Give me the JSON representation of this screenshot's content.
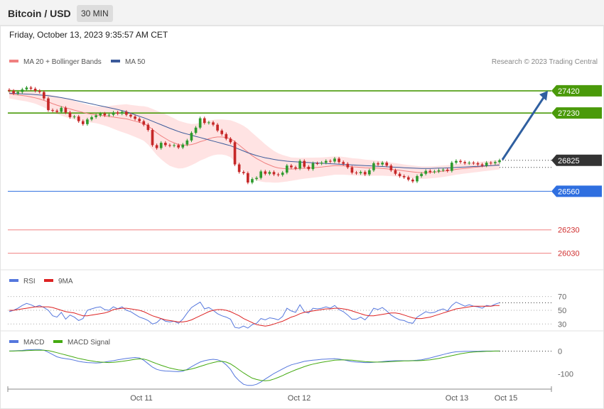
{
  "header": {
    "title": "Bitcoin / USD",
    "interval": "30 MIN",
    "datetime": "Friday, October 13, 2023 9:35:57 AM CET"
  },
  "colors": {
    "ma20": "#f08080",
    "ma50": "#3b5a9a",
    "band_fill": "#ffd9d9",
    "bull": "#2e9a2e",
    "bear": "#c62828",
    "resistance": "#4a9a0a",
    "support": "#2f6fe0",
    "deep_support": "#f08080",
    "price": "#333333",
    "arrow": "#2f5fa0",
    "rsi": "#5577dd",
    "rsi_ma": "#dd2222",
    "macd": "#5577dd",
    "macd_signal": "#44aa11"
  },
  "chart_data": [
    {
      "type": "candlestick",
      "panel": "price",
      "legend": [
        {
          "name": "MA 20 + Bollinger Bands",
          "color": "#f08080"
        },
        {
          "name": "MA 50",
          "color": "#3b5a9a"
        }
      ],
      "credit": "Research © 2023 Trading Central",
      "x_ticks": [
        "Oct 11",
        "Oct 12",
        "Oct 13",
        "Oct 15"
      ],
      "ylim": [
        25900,
        27620
      ],
      "levels": [
        {
          "value": 27420,
          "label": "27420",
          "kind": "resistance",
          "tag": true
        },
        {
          "value": 27230,
          "label": "27230",
          "kind": "resistance",
          "tag": true
        },
        {
          "value": 26825,
          "label": "26825",
          "kind": "price",
          "tag": true
        },
        {
          "value": 26560,
          "label": "26560",
          "kind": "support",
          "tag": true
        },
        {
          "value": 26230,
          "label": "26230",
          "kind": "deep_support",
          "tag": false
        },
        {
          "value": 26030,
          "label": "26030",
          "kind": "deep_support",
          "tag": false
        }
      ],
      "forecast_arrow": {
        "from": 26830,
        "to": 27420
      },
      "close": [
        27420,
        27398,
        27410,
        27432,
        27448,
        27438,
        27420,
        27410,
        27355,
        27255,
        27250,
        27240,
        27275,
        27235,
        27195,
        27200,
        27160,
        27135,
        27175,
        27195,
        27210,
        27225,
        27210,
        27215,
        27235,
        27225,
        27240,
        27215,
        27200,
        27180,
        27160,
        27130,
        27085,
        26955,
        26930,
        26975,
        26955,
        26950,
        26955,
        26935,
        26960,
        26995,
        27060,
        27105,
        27185,
        27145,
        27150,
        27130,
        27080,
        27050,
        27010,
        26980,
        26790,
        26725,
        26715,
        26635,
        26665,
        26675,
        26730,
        26710,
        26725,
        26705,
        26700,
        26720,
        26780,
        26765,
        26755,
        26820,
        26770,
        26750,
        26800,
        26798,
        26805,
        26820,
        26815,
        26840,
        26810,
        26795,
        26765,
        26720,
        26715,
        26725,
        26705,
        26740,
        26800,
        26790,
        26805,
        26780,
        26740,
        26710,
        26690,
        26680,
        26660,
        26645,
        26690,
        26710,
        26735,
        26725,
        26730,
        26740,
        26745,
        26735,
        26805,
        26820,
        26810,
        26800,
        26805,
        26800,
        26790,
        26780,
        26805,
        26800,
        26810,
        26825
      ],
      "ma20": [
        27395,
        27390,
        27385,
        27380,
        27375,
        27368,
        27360,
        27350,
        27338,
        27325,
        27310,
        27297,
        27286,
        27275,
        27265,
        27255,
        27245,
        27235,
        27227,
        27220,
        27215,
        27210,
        27205,
        27200,
        27195,
        27190,
        27185,
        27180,
        27170,
        27160,
        27150,
        27140,
        27120,
        27090,
        27060,
        27035,
        27012,
        26990,
        26975,
        26960,
        26955,
        26955,
        26960,
        26970,
        26985,
        26995,
        27010,
        27020,
        27025,
        27025,
        27020,
        27010,
        26985,
        26955,
        26925,
        26895,
        26865,
        26840,
        26820,
        26800,
        26785,
        26770,
        26760,
        26755,
        26752,
        26750,
        26752,
        26755,
        26758,
        26760,
        26762,
        26765,
        26768,
        26772,
        26776,
        26780,
        26780,
        26778,
        26775,
        26770,
        26768,
        26765,
        26762,
        26760,
        26760,
        26758,
        26756,
        26752,
        26748,
        26744,
        26740,
        26735,
        26730,
        26726,
        26722,
        26720,
        26720,
        26722,
        26724,
        26728,
        26732,
        26736,
        26742,
        26748,
        26752,
        26756,
        26760,
        26764,
        26768,
        26772,
        26776,
        26780,
        26784,
        26788
      ],
      "ma50": [
        27400,
        27398,
        27396,
        27394,
        27392,
        27390,
        27388,
        27385,
        27382,
        27378,
        27373,
        27368,
        27362,
        27355,
        27348,
        27340,
        27332,
        27324,
        27316,
        27308,
        27300,
        27292,
        27284,
        27276,
        27268,
        27260,
        27250,
        27240,
        27228,
        27215,
        27202,
        27190,
        27175,
        27160,
        27145,
        27130,
        27115,
        27100,
        27086,
        27072,
        27060,
        27050,
        27040,
        27030,
        27020,
        27010,
        27000,
        26990,
        26980,
        26970,
        26960,
        26950,
        26935,
        26920,
        26905,
        26890,
        26878,
        26866,
        26856,
        26847,
        26840,
        26833,
        26827,
        26822,
        26818,
        26815,
        26812,
        26810,
        26808,
        26806,
        26804,
        26802,
        26800,
        26798,
        26796,
        26794,
        26792,
        26790,
        26788,
        26786,
        26784,
        26782,
        26780,
        26778,
        26776,
        26774,
        26772,
        26770,
        26768,
        26766,
        26764,
        26762,
        26760,
        26758,
        26757,
        26756,
        26756,
        26756,
        26757,
        26758,
        26759,
        26760,
        26762,
        26764,
        26766,
        26768,
        26770,
        26772,
        26774,
        26776,
        26778,
        26780,
        26782,
        26784
      ],
      "band_width": [
        40,
        42,
        44,
        45,
        46,
        48,
        50,
        55,
        60,
        66,
        72,
        76,
        78,
        80,
        80,
        80,
        78,
        76,
        74,
        72,
        72,
        76,
        82,
        90,
        100,
        110,
        118,
        125,
        130,
        135,
        140,
        148,
        160,
        175,
        190,
        200,
        208,
        212,
        210,
        205,
        198,
        188,
        176,
        168,
        162,
        158,
        155,
        152,
        150,
        150,
        152,
        158,
        170,
        185,
        196,
        200,
        196,
        188,
        176,
        162,
        148,
        136,
        125,
        116,
        108,
        100,
        96,
        92,
        90,
        88,
        86,
        84,
        82,
        80,
        80,
        78,
        78,
        76,
        75,
        74,
        73,
        72,
        70,
        68,
        66,
        64,
        62,
        60,
        58,
        57,
        56,
        55,
        55,
        55,
        55,
        54,
        53,
        52,
        51,
        50,
        49,
        48,
        47,
        46,
        45,
        44,
        44,
        43,
        43,
        42,
        42,
        41,
        41,
        40
      ]
    },
    {
      "type": "line",
      "panel": "rsi",
      "legend": [
        {
          "name": "RSI",
          "color": "#5577dd"
        },
        {
          "name": "9MA",
          "color": "#dd2222"
        }
      ],
      "ylim": [
        22,
        80
      ],
      "levels": [
        70,
        50,
        30
      ],
      "series": [
        {
          "name": "RSI",
          "values": [
            48,
            50,
            53,
            57,
            60,
            58,
            55,
            57,
            54,
            50,
            42,
            40,
            47,
            37,
            43,
            40,
            35,
            38,
            50,
            52,
            54,
            55,
            51,
            50,
            55,
            52,
            55,
            50,
            48,
            44,
            40,
            38,
            35,
            30,
            32,
            38,
            34,
            33,
            34,
            31,
            37,
            46,
            54,
            58,
            62,
            52,
            54,
            50,
            45,
            42,
            40,
            37,
            25,
            24,
            27,
            24,
            29,
            31,
            38,
            36,
            39,
            38,
            36,
            41,
            53,
            49,
            47,
            58,
            48,
            46,
            53,
            52,
            53,
            55,
            53,
            57,
            51,
            48,
            43,
            37,
            37,
            40,
            36,
            43,
            53,
            51,
            54,
            49,
            43,
            39,
            36,
            35,
            32,
            31,
            40,
            44,
            48,
            46,
            47,
            50,
            52,
            49,
            57,
            62,
            59,
            56,
            58,
            56,
            55,
            53,
            57,
            56,
            59,
            61
          ]
        },
        {
          "name": "9MA",
          "values": [
            50,
            50,
            51,
            52,
            53,
            54,
            55,
            55,
            55,
            55,
            54,
            52,
            50,
            48,
            47,
            46,
            44,
            42,
            42,
            43,
            44,
            45,
            46,
            48,
            51,
            52,
            53,
            53,
            52,
            51,
            50,
            48,
            45,
            42,
            40,
            38,
            36,
            35,
            34,
            33,
            33,
            34,
            36,
            39,
            42,
            45,
            48,
            50,
            51,
            51,
            50,
            48,
            45,
            42,
            38,
            35,
            32,
            29,
            28,
            27,
            28,
            30,
            32,
            34,
            37,
            40,
            42,
            45,
            47,
            48,
            49,
            50,
            51,
            52,
            52,
            53,
            53,
            52,
            51,
            49,
            47,
            45,
            43,
            42,
            42,
            43,
            44,
            45,
            46,
            46,
            45,
            43,
            41,
            39,
            38,
            38,
            39,
            40,
            42,
            44,
            46,
            48,
            50,
            52,
            53,
            54,
            55,
            56,
            56,
            56,
            56,
            56,
            57,
            57
          ]
        }
      ]
    },
    {
      "type": "line",
      "panel": "macd",
      "legend": [
        {
          "name": "MACD",
          "color": "#5577dd"
        },
        {
          "name": "MACD Signal",
          "color": "#44aa11"
        }
      ],
      "ylim": [
        -160,
        20
      ],
      "ticks": [
        0,
        -100
      ],
      "series": [
        {
          "name": "MACD",
          "values": [
            0,
            1,
            2,
            3,
            5,
            6,
            7,
            7,
            4,
            -5,
            -15,
            -25,
            -30,
            -33,
            -36,
            -40,
            -45,
            -48,
            -50,
            -51,
            -52,
            -51,
            -48,
            -45,
            -42,
            -38,
            -35,
            -32,
            -30,
            -28,
            -30,
            -40,
            -55,
            -70,
            -80,
            -85,
            -87,
            -88,
            -89,
            -90,
            -88,
            -80,
            -68,
            -58,
            -48,
            -42,
            -38,
            -36,
            -38,
            -45,
            -60,
            -80,
            -110,
            -130,
            -145,
            -150,
            -150,
            -145,
            -135,
            -122,
            -110,
            -98,
            -88,
            -78,
            -68,
            -60,
            -55,
            -50,
            -45,
            -42,
            -40,
            -38,
            -36,
            -35,
            -34,
            -33,
            -35,
            -38,
            -42,
            -46,
            -48,
            -49,
            -50,
            -50,
            -49,
            -48,
            -46,
            -44,
            -43,
            -42,
            -42,
            -42,
            -42,
            -41,
            -40,
            -38,
            -34,
            -30,
            -25,
            -20,
            -15,
            -10,
            -6,
            -3,
            -2,
            -1,
            -1,
            -1,
            -1,
            0,
            0,
            0,
            0,
            0
          ]
        },
        {
          "name": "MACD Signal",
          "values": [
            0,
            0,
            1,
            1,
            2,
            3,
            4,
            4,
            4,
            2,
            -2,
            -7,
            -12,
            -17,
            -22,
            -27,
            -32,
            -36,
            -40,
            -43,
            -46,
            -48,
            -49,
            -50,
            -49,
            -47,
            -45,
            -42,
            -39,
            -36,
            -34,
            -35,
            -40,
            -48,
            -55,
            -62,
            -68,
            -74,
            -78,
            -82,
            -84,
            -82,
            -78,
            -73,
            -67,
            -61,
            -55,
            -50,
            -46,
            -45,
            -48,
            -56,
            -68,
            -82,
            -95,
            -107,
            -118,
            -124,
            -128,
            -130,
            -128,
            -122,
            -115,
            -107,
            -98,
            -90,
            -82,
            -75,
            -68,
            -62,
            -57,
            -53,
            -49,
            -46,
            -43,
            -40,
            -39,
            -38,
            -39,
            -40,
            -42,
            -44,
            -46,
            -47,
            -48,
            -48,
            -48,
            -47,
            -46,
            -45,
            -44,
            -43,
            -43,
            -42,
            -42,
            -41,
            -40,
            -38,
            -35,
            -32,
            -28,
            -24,
            -20,
            -16,
            -12,
            -9,
            -6,
            -4,
            -3,
            -2,
            -1,
            -1,
            0,
            0
          ]
        }
      ]
    }
  ]
}
